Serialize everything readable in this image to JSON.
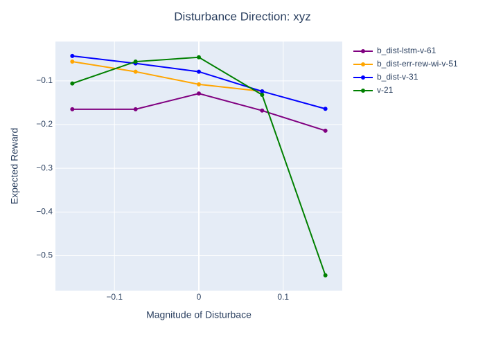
{
  "chart_data": {
    "type": "line",
    "title": "Disturbance Direction: xyz",
    "x_label": "Magnitude of Disturbace",
    "y_label": "Expected Reward",
    "x": [
      -0.15,
      -0.075,
      0,
      0.075,
      0.15
    ],
    "series": [
      {
        "name": "b_dist-lstm-v-61",
        "color": "#800080",
        "values": [
          -0.165,
          -0.165,
          -0.129,
          -0.168,
          -0.214
        ]
      },
      {
        "name": "b_dist-err-rew-wi-v-51",
        "color": "#ffa500",
        "values": [
          -0.056,
          -0.079,
          -0.108,
          -0.124,
          null
        ]
      },
      {
        "name": "b_dist-v-31",
        "color": "#0000ff",
        "values": [
          -0.043,
          -0.06,
          -0.079,
          -0.124,
          -0.164
        ]
      },
      {
        "name": "v-21",
        "color": "#008000",
        "values": [
          -0.106,
          -0.056,
          -0.046,
          -0.132,
          -0.545
        ]
      }
    ],
    "xlim": [
      -0.17,
      0.17
    ],
    "ylim": [
      -0.58,
      -0.01
    ],
    "xticks": [
      {
        "value": -0.1,
        "label": "−0.1"
      },
      0,
      0.1
    ],
    "yticks": [
      {
        "value": -0.1,
        "label": "−0.1"
      },
      {
        "value": -0.2,
        "label": "−0.2"
      },
      {
        "value": -0.3,
        "label": "−0.3"
      },
      {
        "value": -0.4,
        "label": "−0.4"
      },
      {
        "value": -0.5,
        "label": "−0.5"
      }
    ],
    "grid": true,
    "legend_position": "right"
  }
}
